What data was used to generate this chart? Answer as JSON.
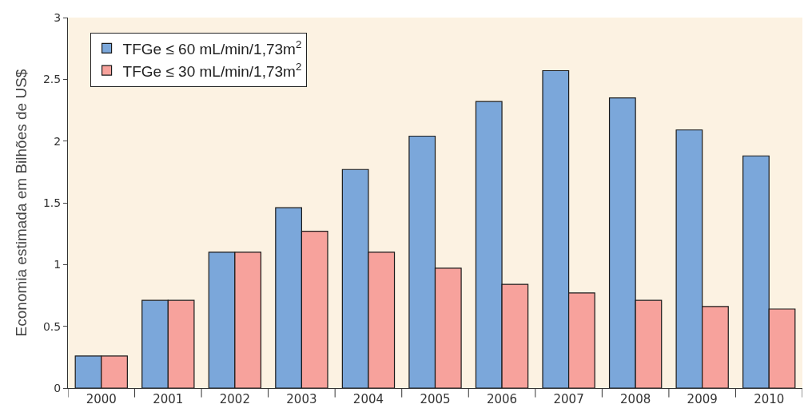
{
  "chart_data": {
    "type": "bar",
    "ylabel": "Economia estimada em Bilhões de US$",
    "categories": [
      "2000",
      "2001",
      "2002",
      "2003",
      "2004",
      "2005",
      "2006",
      "2007",
      "2008",
      "2009",
      "2010"
    ],
    "series": [
      {
        "name": "TFGe ≤ 60 mL/min/1,73m$^{2}$",
        "color": "#7ba7da",
        "values": [
          0.26,
          0.71,
          1.1,
          1.46,
          1.77,
          2.04,
          2.32,
          2.57,
          2.35,
          2.09,
          1.88
        ]
      },
      {
        "name": "TFGe ≤ 30 mL/min/1,73m$^{2}$",
        "color": "#f7a29c",
        "values": [
          0.26,
          0.71,
          1.1,
          1.27,
          1.1,
          0.97,
          0.84,
          0.77,
          0.71,
          0.66,
          0.64
        ]
      }
    ],
    "ylim": [
      0,
      3
    ],
    "yticks": [
      0,
      0.5,
      1,
      1.5,
      2,
      2.5,
      3
    ],
    "grid": false,
    "legend": "top left"
  }
}
